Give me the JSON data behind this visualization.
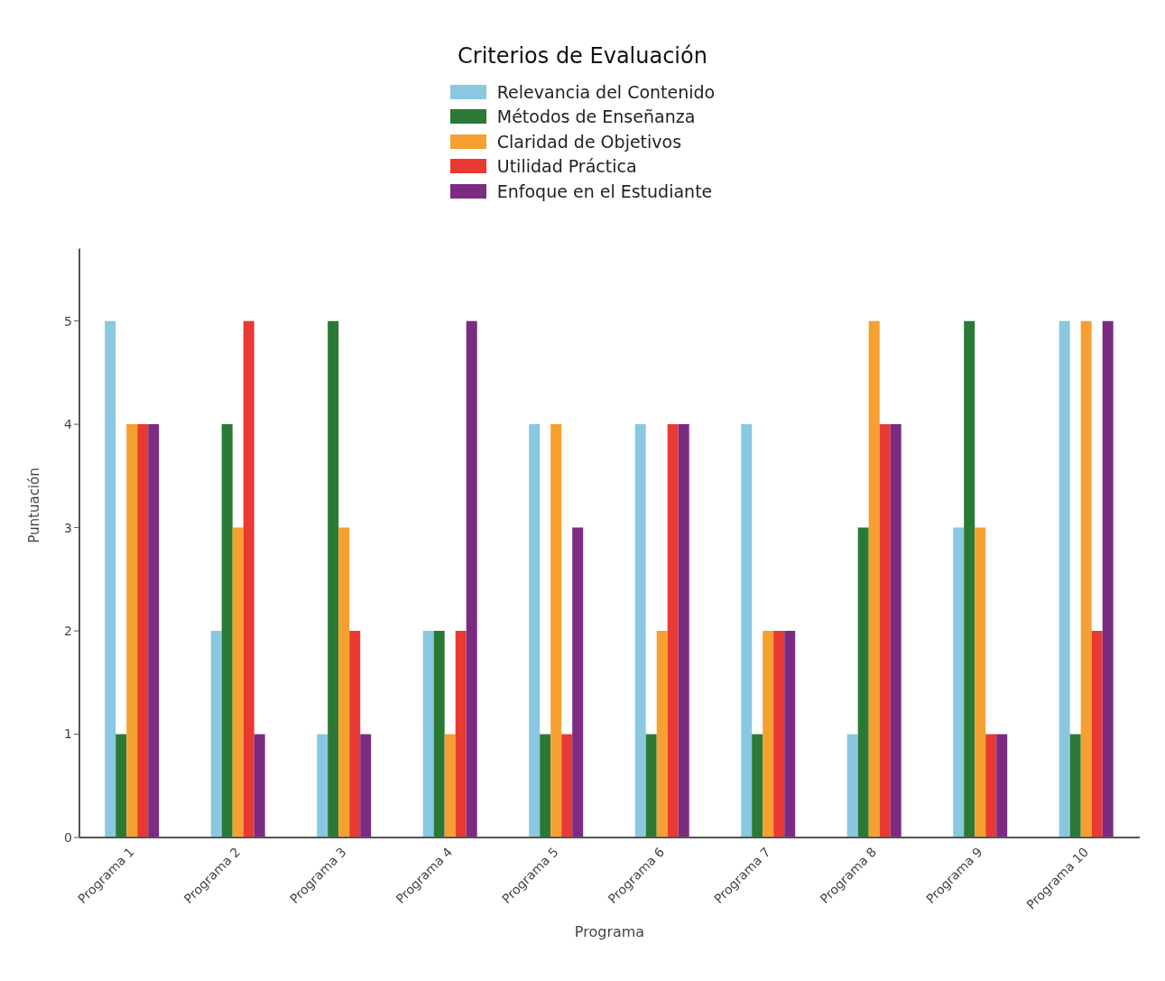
{
  "chart_data": {
    "type": "bar",
    "legend_title": "Criterios de Evaluación",
    "xlabel": "Programa",
    "ylabel": "Puntuación",
    "categories": [
      "Programa 1",
      "Programa 2",
      "Programa 3",
      "Programa 4",
      "Programa 5",
      "Programa 6",
      "Programa 7",
      "Programa 8",
      "Programa 9",
      "Programa 10"
    ],
    "series": [
      {
        "name": "Relevancia del Contenido",
        "color": "#89c8e0",
        "values": [
          5,
          2,
          1,
          2,
          4,
          4,
          4,
          1,
          3,
          5
        ]
      },
      {
        "name": "Métodos de Enseñanza",
        "color": "#2a7a35",
        "values": [
          1,
          4,
          5,
          2,
          1,
          1,
          1,
          3,
          5,
          1
        ]
      },
      {
        "name": "Claridad de Objetivos",
        "color": "#f5a030",
        "values": [
          4,
          3,
          3,
          1,
          4,
          2,
          2,
          5,
          3,
          5
        ]
      },
      {
        "name": "Utilidad Práctica",
        "color": "#e83a32",
        "values": [
          4,
          5,
          2,
          2,
          1,
          4,
          2,
          4,
          1,
          2
        ]
      },
      {
        "name": "Enfoque en el Estudiante",
        "color": "#7b2c82",
        "values": [
          4,
          1,
          1,
          5,
          3,
          4,
          2,
          4,
          1,
          5
        ]
      }
    ],
    "ylim": [
      0,
      5.7
    ],
    "yticks": [
      0,
      1,
      2,
      3,
      4,
      5
    ],
    "grid": false,
    "legend": "top"
  }
}
